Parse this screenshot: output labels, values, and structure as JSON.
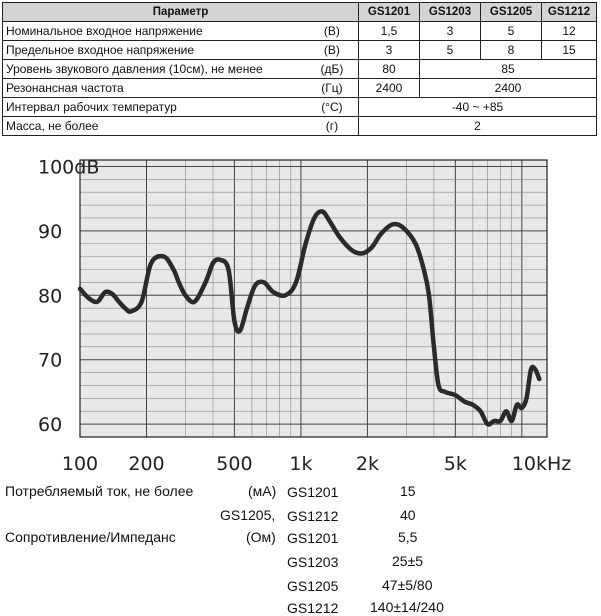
{
  "table": {
    "headers": [
      "Параметр",
      "GS1201",
      "GS1203",
      "GS1205",
      "GS1212"
    ],
    "rows": [
      {
        "name": "Номинальное входное напряжение",
        "unit": "(В)",
        "values": [
          "1,5",
          "3",
          "5",
          "12"
        ]
      },
      {
        "name": "Предельное входное напряжение",
        "unit": "(В)",
        "values": [
          "3",
          "5",
          "8",
          "15"
        ]
      },
      {
        "name": "Уровень звукового давления (10см), не менее",
        "unit": "(дБ)",
        "values": [
          "80",
          "85"
        ]
      },
      {
        "name": "Резонансная частота",
        "unit": "(Гц)",
        "values": [
          "2400",
          "2400"
        ]
      },
      {
        "name": "Интервал рабочих температур",
        "unit": "(°С)",
        "values": [
          "-40 ~ +85"
        ]
      },
      {
        "name": "Масса, не более",
        "unit": "(г)",
        "values": [
          "2"
        ]
      }
    ]
  },
  "chart_data": {
    "type": "line",
    "x_scale": "log",
    "ylim": [
      58,
      101
    ],
    "xlim": [
      100,
      13000
    ],
    "x_ticks": [
      {
        "value": 100,
        "label": "100"
      },
      {
        "value": 200,
        "label": "200"
      },
      {
        "value": 500,
        "label": "500"
      },
      {
        "value": 1000,
        "label": "1k"
      },
      {
        "value": 2000,
        "label": "2k"
      },
      {
        "value": 5000,
        "label": "5k"
      },
      {
        "value": 10000,
        "label": "10kHz"
      }
    ],
    "y_ticks": [
      {
        "value": 100,
        "label": "100dB"
      },
      {
        "value": 90,
        "label": "90"
      },
      {
        "value": 80,
        "label": "80"
      },
      {
        "value": 70,
        "label": "70"
      },
      {
        "value": 60,
        "label": "60"
      }
    ],
    "grid": true,
    "series": [
      {
        "x": [
          100,
          110,
          120,
          130,
          140,
          150,
          160,
          170,
          190,
          210,
          240,
          265,
          280,
          300,
          330,
          370,
          400,
          430,
          470,
          500,
          530,
          570,
          620,
          680,
          750,
          850,
          950,
          1050,
          1150,
          1250,
          1350,
          1500,
          1700,
          1900,
          2100,
          2300,
          2600,
          2900,
          3300,
          3600,
          3800,
          4000,
          4200,
          4500,
          5000,
          5500,
          6000,
          6500,
          7000,
          7500,
          8000,
          8500,
          9000,
          9500,
          10000,
          10500,
          11000,
          11500,
          12000
        ],
        "y": [
          81,
          79.5,
          79,
          80.5,
          80.2,
          79,
          78,
          77.5,
          79,
          85,
          86,
          84,
          82,
          80,
          79,
          82,
          85,
          85.5,
          84,
          76,
          74.5,
          78,
          81.5,
          82,
          80.5,
          80,
          82,
          88,
          92,
          93,
          91.5,
          89,
          87,
          86.5,
          87.5,
          89.5,
          91,
          90.5,
          88,
          84,
          80,
          72,
          66,
          65,
          64.5,
          63.5,
          63,
          62,
          60,
          60.5,
          60.5,
          62,
          60.5,
          63,
          62.5,
          64,
          68.5,
          68.5,
          67
        ]
      }
    ]
  },
  "bottom": {
    "current_label": "Потребляемый ток, не более",
    "current_unit": "(мА)",
    "current_model_1": "GS1201",
    "current_value_1": "15",
    "current_prefix_2": "GS1205,",
    "current_model_2": "GS1212",
    "current_value_2": "40",
    "res_label": "Сопротивление/Импеданс",
    "res_unit": "(Ом)",
    "res_model_1": "GS1201",
    "res_value_1": "5,5",
    "res_model_2": "GS1203",
    "res_value_2": "25±5",
    "res_model_3": "GS1205",
    "res_value_3": "47±5/80",
    "res_model_4": "GS1212",
    "res_value_4": "140±14/240"
  }
}
